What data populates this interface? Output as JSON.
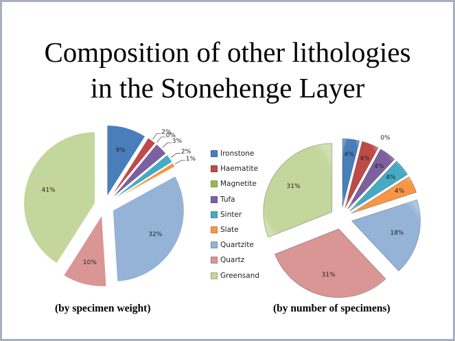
{
  "title_lines": [
    "Composition of other lithologies",
    "in the Stonehenge Layer"
  ],
  "legend": [
    "Ironstone",
    "Haematite",
    "Magnetite",
    "Tufa",
    "Sinter",
    "Slate",
    "Quartzite",
    "Quartz",
    "Greensand"
  ],
  "colors": [
    "#4a7ebb",
    "#be4b48",
    "#98b954",
    "#7d60a0",
    "#46aac5",
    "#f79646",
    "#95b3d7",
    "#d99694",
    "#c3d69b"
  ],
  "chart_data": [
    {
      "type": "pie",
      "subtitle": "(by specimen weight)",
      "categories": [
        "Ironstone",
        "Haematite",
        "Magnetite",
        "Tufa",
        "Sinter",
        "Slate",
        "Quartzite",
        "Quartz",
        "Greensand"
      ],
      "values": [
        9,
        2,
        0,
        3,
        2,
        1,
        32,
        10,
        41
      ],
      "labels": [
        "9%",
        "2%",
        "0%",
        "3%",
        "2%",
        "1%",
        "32%",
        "10%",
        "41%"
      ],
      "exploded": true
    },
    {
      "type": "pie",
      "subtitle": "(by number of specimens)",
      "categories": [
        "Ironstone",
        "Haematite",
        "Magnetite",
        "Tufa",
        "Sinter",
        "Slate",
        "Quartzite",
        "Quartz",
        "Greensand"
      ],
      "values": [
        4,
        4,
        0,
        4,
        4,
        4,
        18,
        31,
        31
      ],
      "labels": [
        "4%",
        "4%",
        "0%",
        "4%",
        "4%",
        "4%",
        "18%",
        "31%",
        "31%"
      ],
      "exploded": true
    }
  ]
}
